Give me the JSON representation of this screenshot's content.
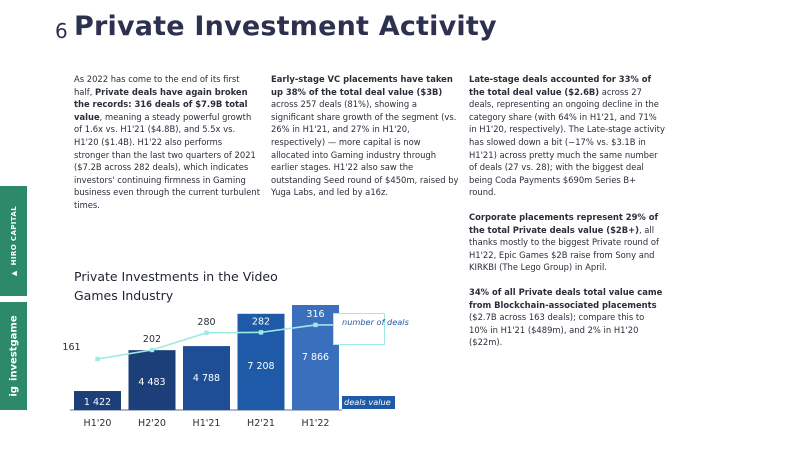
{
  "header": {
    "page_number": "6",
    "title": "Private Investment Activity"
  },
  "sidebar": {
    "brand_1": "HIRO CAPITAL",
    "brand_2": "investgame"
  },
  "columns": {
    "col1": {
      "p1_start": "As 2022 has come to the end of its first half, ",
      "p1_bold": "Private deals have again broken the records: 316 deals of $7.9B total value",
      "p1_end": ", meaning a steady powerful growth of 1.6x vs. H1'21 ($4.8B), and 5.5x vs. H1'20 ($1.4B). H1'22 also performs stronger than the last two quarters of 2021 ($7.2B across 282 deals), which indicates investors' continuing firmness in Gaming business even through the current turbulent times."
    },
    "col2": {
      "p1_bold": "Early-stage VC placements have taken up 38% of the total deal value ($3B)",
      "p1_end": " across 257 deals (81%), showing a significant share growth of the segment (vs. 26% in H1'21, and 27% in H1'20, respectively) — more capital is now allocated into Gaming industry through earlier stages. H1'22 also saw the outstanding Seed round of $450m, raised by Yuga Labs, and led by a16z."
    },
    "col3": {
      "p1_bold": "Late-stage deals accounted for 33% of the total deal value ($2.6B)",
      "p1_end": " across 27 deals, representing an ongoing decline in the category share (with 64% in H1'21, and 71% in H1'20, respectively). The Late-stage activity has slowed down a bit (−17% vs. $3.1B in H1'21) across pretty much the same number of deals (27 vs. 28); with the biggest deal being Coda Payments $690m Series B+ round.",
      "p2_bold": "Corporate placements represent 29% of the total Private deals value ($2B+)",
      "p2_end": ", all thanks mostly to the biggest Private round of H1'22, Epic Games $2B raise from Sony and KIRKBI (The Lego Group) in April.",
      "p3_bold": "34% of all Private deals total value came from Blockchain-associated placements",
      "p3_end": " ($2.7B across 163 deals); compare this to 10% in H1'21 ($489m), and 2% in H1'20 ($22m)."
    }
  },
  "chart_data": {
    "type": "bar",
    "title": "Private Investments in the Video Games Industry",
    "categories": [
      "H1'20",
      "H2'20",
      "H1'21",
      "H2'21",
      "H1'22"
    ],
    "series": [
      {
        "name": "deals value",
        "values": [
          1422,
          4483,
          4788,
          7208,
          7866
        ],
        "labels": [
          "1 422",
          "4 483",
          "4 788",
          "7 208",
          "7 866"
        ]
      },
      {
        "name": "number of deals",
        "type": "line",
        "values": [
          161,
          202,
          280,
          282,
          316
        ]
      }
    ],
    "legend_line": "number of deals",
    "legend_bar": "deals value",
    "colors": {
      "bars": [
        "#1c3f7a",
        "#1c3f7a",
        "#1e4f96",
        "#1e5aa7",
        "#3a6fbd"
      ],
      "line": "#9feae6"
    }
  }
}
